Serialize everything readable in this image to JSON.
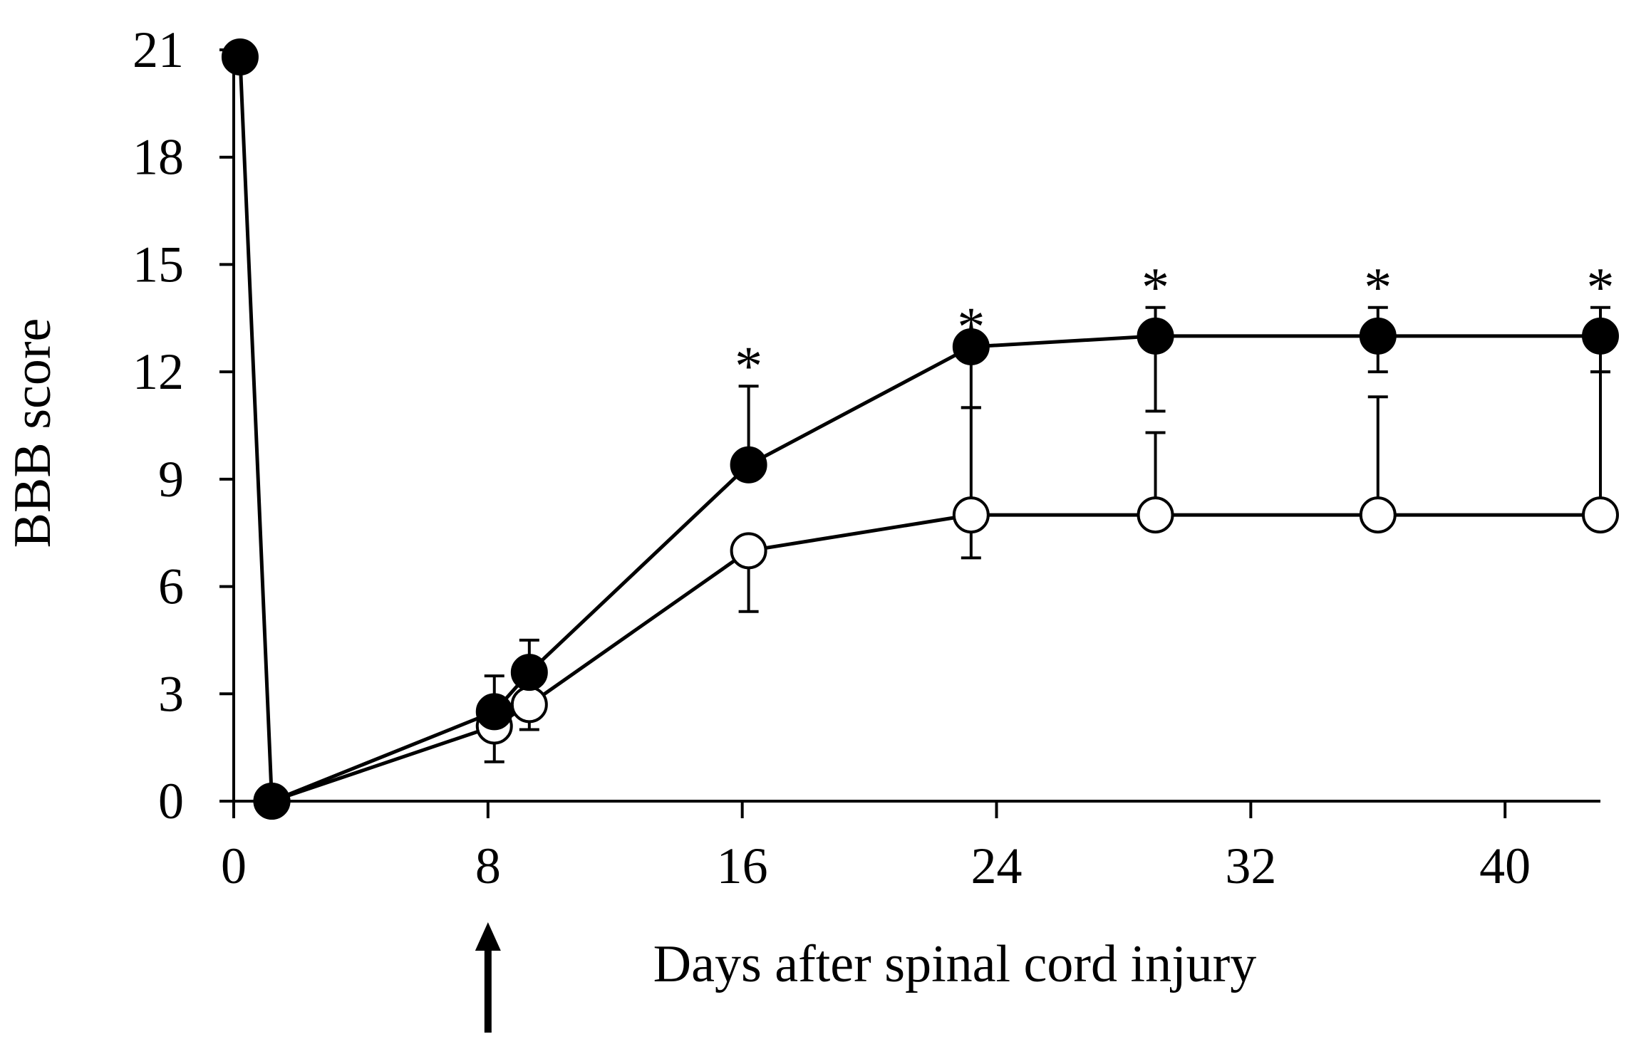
{
  "chart_data": {
    "type": "line",
    "title": "",
    "xlabel": "Days after spinal cord injury",
    "ylabel": "BBB score",
    "xlim": [
      0,
      43
    ],
    "ylim": [
      0,
      21
    ],
    "xticks": [
      0,
      8,
      16,
      24,
      32,
      40
    ],
    "xtick_labels": [
      "0",
      "8",
      "16",
      "24",
      "32",
      "40"
    ],
    "yticks": [
      0,
      3,
      6,
      9,
      12,
      15,
      18,
      21
    ],
    "ytick_labels": [
      "0",
      "3",
      "6",
      "9",
      "12",
      "15",
      "18",
      "21"
    ],
    "grid": false,
    "legend": "none",
    "arrow_at_x": 8,
    "significance_marker": "*",
    "series": [
      {
        "name": "filled",
        "marker": "filled-circle",
        "x": [
          0.2,
          1.2,
          8.2,
          9.3,
          16.2,
          23.2,
          29.0,
          36.0,
          43.0
        ],
        "y": [
          20.8,
          0,
          2.5,
          3.6,
          9.4,
          12.7,
          13.0,
          13.0,
          13.0
        ],
        "err_upper": [
          null,
          null,
          1.0,
          0.9,
          2.2,
          null,
          0.8,
          0.8,
          0.8
        ],
        "err_lower": [
          null,
          null,
          null,
          null,
          null,
          1.7,
          2.1,
          1.0,
          1.0
        ]
      },
      {
        "name": "open",
        "marker": "open-circle",
        "x": [
          1.2,
          8.2,
          9.3,
          16.2,
          23.2,
          29.0,
          36.0,
          43.0
        ],
        "y": [
          0,
          2.1,
          2.7,
          7.0,
          8.0,
          8.0,
          8.0,
          8.0
        ],
        "err_upper": [
          null,
          null,
          null,
          null,
          3.0,
          2.3,
          3.3,
          4.0
        ],
        "err_lower": [
          null,
          1.0,
          0.7,
          1.7,
          1.2,
          null,
          null,
          null
        ]
      }
    ],
    "annotations": [
      {
        "text": "*",
        "x": 16.2
      },
      {
        "text": "*",
        "x": 23.2
      },
      {
        "text": "*",
        "x": 29.0
      },
      {
        "text": "*",
        "x": 36.0
      },
      {
        "text": "*",
        "x": 43.0
      }
    ]
  }
}
